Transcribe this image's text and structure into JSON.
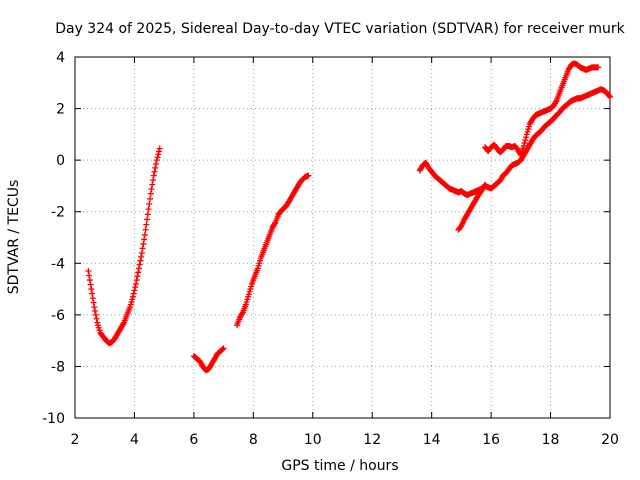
{
  "chart_data": {
    "type": "scatter",
    "title": "Day 324 of 2025, Sidereal Day-to-day VTEC variation (SDTVAR) for receiver murk",
    "xlabel": "GPS time / hours",
    "ylabel": "SDTVAR / TECUs",
    "xlim": [
      2,
      20
    ],
    "ylim": [
      -10,
      4
    ],
    "xticks": [
      "2",
      "4",
      "6",
      "8",
      "10",
      "12",
      "14",
      "16",
      "18",
      "20"
    ],
    "yticks": [
      "-10",
      "-8",
      "-6",
      "-4",
      "-2",
      "0",
      "2",
      "4"
    ],
    "grid": true,
    "marker": "+",
    "color": "#ff0000",
    "series": [
      {
        "name": "segment-1",
        "x": [
          2.45,
          2.55,
          2.65,
          2.75,
          2.85,
          2.95,
          3.05,
          3.15,
          3.25,
          3.35,
          3.45,
          3.55,
          3.65,
          3.75,
          3.85,
          3.95,
          4.05,
          4.15,
          4.25,
          4.35,
          4.45,
          4.55,
          4.65,
          4.75,
          4.85
        ],
        "y": [
          -4.3,
          -5.0,
          -5.7,
          -6.3,
          -6.7,
          -6.85,
          -7.0,
          -7.1,
          -7.05,
          -6.9,
          -6.7,
          -6.5,
          -6.3,
          -6.0,
          -5.7,
          -5.3,
          -4.8,
          -4.2,
          -3.6,
          -2.9,
          -2.1,
          -1.3,
          -0.6,
          0.0,
          0.45
        ]
      },
      {
        "name": "segment-2",
        "x": [
          6.0,
          6.1,
          6.2,
          6.3,
          6.4,
          6.5,
          6.6,
          6.7,
          6.8,
          6.9,
          7.0,
          7.45,
          7.55,
          7.65,
          7.75,
          7.85,
          7.95,
          8.05,
          8.15,
          8.25,
          8.35,
          8.45,
          8.55,
          8.65,
          8.75,
          8.85,
          8.95,
          9.05,
          9.15,
          9.25,
          9.35,
          9.45,
          9.55,
          9.65,
          9.75,
          9.85
        ],
        "y": [
          -7.6,
          -7.7,
          -7.8,
          -8.0,
          -8.15,
          -8.1,
          -7.9,
          -7.7,
          -7.5,
          -7.4,
          -7.3,
          -6.4,
          -6.1,
          -5.9,
          -5.6,
          -5.2,
          -4.8,
          -4.5,
          -4.2,
          -3.8,
          -3.5,
          -3.2,
          -2.9,
          -2.6,
          -2.4,
          -2.1,
          -1.95,
          -1.85,
          -1.7,
          -1.5,
          -1.3,
          -1.1,
          -0.9,
          -0.75,
          -0.65,
          -0.6
        ]
      },
      {
        "name": "segment-3",
        "x": [
          13.6,
          13.7,
          13.8,
          13.9,
          14.0,
          14.1,
          14.2,
          14.3,
          14.4,
          14.5,
          14.6,
          14.7,
          14.8,
          14.9,
          15.0,
          15.1,
          15.2,
          15.3,
          15.4,
          15.5,
          15.6,
          15.7,
          15.8,
          15.9,
          16.0,
          16.1,
          16.2,
          16.3,
          16.4,
          16.5,
          16.6,
          16.7,
          16.8,
          16.9,
          17.0,
          17.1,
          17.2,
          17.3,
          17.4,
          17.5,
          17.6,
          17.7,
          17.8,
          17.9,
          18.0,
          18.1,
          18.2,
          18.3,
          18.4,
          18.5,
          18.6,
          18.7,
          18.8,
          18.9,
          19.0,
          19.1,
          19.2,
          19.3,
          19.4,
          19.5,
          19.6,
          19.7,
          19.8,
          19.9,
          20.0
        ],
        "y": [
          -0.4,
          -0.2,
          -0.1,
          -0.3,
          -0.45,
          -0.6,
          -0.7,
          -0.8,
          -0.9,
          -1.0,
          -1.1,
          -1.15,
          -1.2,
          -1.25,
          -1.2,
          -1.3,
          -1.35,
          -1.3,
          -1.25,
          -1.2,
          -1.15,
          -1.1,
          -1.0,
          -1.05,
          -1.1,
          -1.0,
          -0.9,
          -0.8,
          -0.6,
          -0.5,
          -0.35,
          -0.2,
          -0.15,
          -0.1,
          0.0,
          0.2,
          0.4,
          0.6,
          0.8,
          0.95,
          1.05,
          1.15,
          1.3,
          1.4,
          1.5,
          1.6,
          1.75,
          1.85,
          2.0,
          2.1,
          2.2,
          2.3,
          2.35,
          2.4,
          2.4,
          2.45,
          2.5,
          2.55,
          2.6,
          2.65,
          2.7,
          2.75,
          2.7,
          2.6,
          2.45
        ]
      },
      {
        "name": "segment-4",
        "x": [
          14.9,
          15.0,
          15.1,
          15.2,
          15.3,
          15.4,
          15.5,
          15.6,
          15.7,
          15.8
        ],
        "y": [
          -2.7,
          -2.55,
          -2.3,
          -2.1,
          -1.9,
          -1.7,
          -1.5,
          -1.3,
          -1.15,
          -0.95
        ]
      },
      {
        "name": "segment-5",
        "x": [
          15.8,
          15.9,
          16.0,
          16.1,
          16.2,
          16.3,
          16.4,
          16.5,
          16.6,
          16.7,
          16.8,
          16.9,
          17.0,
          17.1,
          17.2,
          17.3,
          17.4,
          17.5,
          17.6,
          17.7,
          17.8,
          17.9,
          18.0,
          18.1,
          18.2,
          18.3,
          18.4,
          18.5,
          18.6,
          18.7,
          18.8,
          18.9,
          19.0,
          19.1,
          19.2,
          19.3,
          19.4,
          19.5,
          19.6
        ],
        "y": [
          0.5,
          0.35,
          0.5,
          0.6,
          0.45,
          0.3,
          0.4,
          0.55,
          0.55,
          0.5,
          0.55,
          0.4,
          0.2,
          0.55,
          1.0,
          1.4,
          1.6,
          1.75,
          1.8,
          1.85,
          1.9,
          1.95,
          2.0,
          2.1,
          2.3,
          2.6,
          2.9,
          3.2,
          3.5,
          3.7,
          3.75,
          3.7,
          3.6,
          3.55,
          3.5,
          3.55,
          3.6,
          3.6,
          3.6
        ]
      }
    ]
  }
}
